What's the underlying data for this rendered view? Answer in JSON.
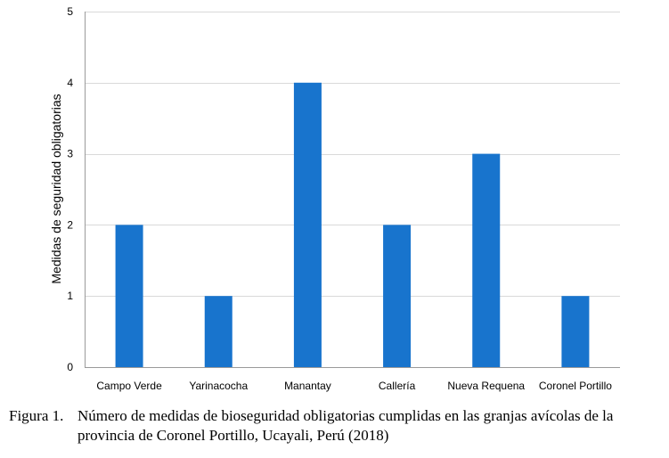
{
  "chart_data": {
    "type": "bar",
    "categories": [
      "Campo Verde",
      "Yarinacocha",
      "Manantay",
      "Callería",
      "Nueva Requena",
      "Coronel Portillo"
    ],
    "values": [
      2,
      1,
      4,
      2,
      3,
      1
    ],
    "ylabel": "Medidas de seguridad obligatorias",
    "xlabel": "",
    "ylim": [
      0,
      5
    ],
    "yticks": [
      0,
      1,
      2,
      3,
      4,
      5
    ],
    "grid": true,
    "bar_color": "#1874CD"
  },
  "caption": {
    "number": "Figura 1.",
    "text": "Número de medidas de bioseguridad obligatorias cumplidas en las granjas avícolas de la provincia de Coronel Portillo, Ucayali, Perú (2018)"
  }
}
